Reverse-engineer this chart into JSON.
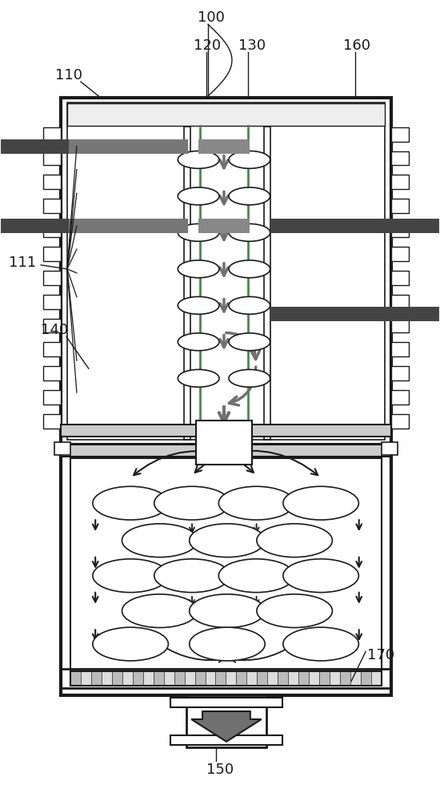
{
  "bg_color": "#ffffff",
  "line_color": "#1a1a1a",
  "arrow_color": "#707070",
  "dark_bar_color": "#444444",
  "green_line_color": "#4a8a4a",
  "fig_w": 5.5,
  "fig_h": 10.0,
  "dpi": 100
}
